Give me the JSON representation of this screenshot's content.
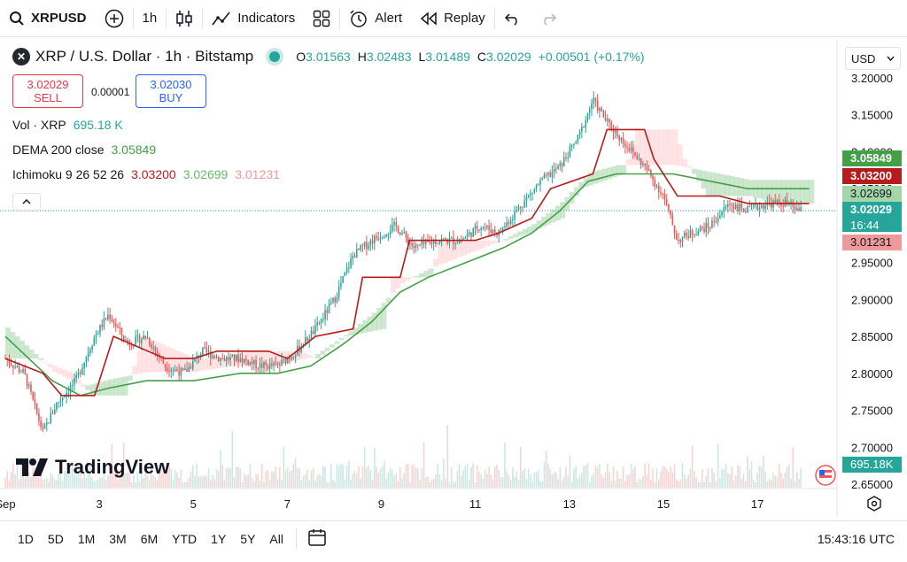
{
  "toolbar": {
    "symbol": "XRPUSD",
    "interval": "1h",
    "indicators_label": "Indicators",
    "alert_label": "Alert",
    "replay_label": "Replay"
  },
  "legend": {
    "title": "XRP / U.S. Dollar · 1h · Bitstamp",
    "open_key": "O",
    "open": "3.01563",
    "high_key": "H",
    "high": "3.02483",
    "low_key": "L",
    "low": "3.01489",
    "close_key": "C",
    "close": "3.02029",
    "change": "+0.00501 (+0.17%)"
  },
  "trade": {
    "sell_price": "3.02029",
    "sell_label": "SELL",
    "buy_price": "3.02030",
    "buy_label": "BUY",
    "spread": "0.00001"
  },
  "indicators": {
    "vol_label": "Vol · XRP",
    "vol_value": "695.18 K",
    "dema_label": "DEMA 200 close",
    "dema_value": "3.05849",
    "ichimoku_label": "Ichimoku 9 26 52 26",
    "ichimoku_v1": "3.03200",
    "ichimoku_v2": "3.02699",
    "ichimoku_v3": "3.01231"
  },
  "currency": "USD",
  "price_labels": {
    "dema": "3.05849",
    "base": "3.03200",
    "spanA": "3.02699",
    "last": "3.02029",
    "countdown": "16:44",
    "spanB": "3.01231",
    "volume": "695.18K"
  },
  "branding": "TradingView",
  "bottom": {
    "ranges": [
      "1D",
      "5D",
      "1M",
      "3M",
      "6M",
      "YTD",
      "1Y",
      "5Y",
      "All"
    ],
    "clock": "15:43:16 UTC"
  },
  "colors": {
    "up": "#26a69a",
    "down": "#ef5350",
    "dema": "#43a047",
    "base_line": "#b71c1c",
    "cloud_green": "#a5d6a7",
    "cloud_red": "#ffcdd2"
  },
  "chart_data": {
    "type": "candlestick",
    "title": "XRP / U.S. Dollar · 1h · Bitstamp",
    "ylim": [
      2.65,
      3.2
    ],
    "y_ticks": [
      "3.20000",
      "3.15000",
      "3.10000",
      "3.05000",
      "3.00000",
      "2.95000",
      "2.90000",
      "2.85000",
      "2.80000",
      "2.75000",
      "2.70000",
      "2.65000"
    ],
    "x_ticks": [
      "Sep",
      "3",
      "5",
      "7",
      "9",
      "11",
      "13",
      "15",
      "17"
    ],
    "x_tick_days": [
      1,
      3,
      5,
      7,
      9,
      11,
      13,
      15,
      17
    ],
    "x_range_days": [
      1,
      18.6
    ],
    "price_path": [
      [
        1.0,
        2.82
      ],
      [
        1.4,
        2.8
      ],
      [
        1.8,
        2.72
      ],
      [
        2.1,
        2.76
      ],
      [
        2.5,
        2.79
      ],
      [
        2.9,
        2.85
      ],
      [
        3.2,
        2.88
      ],
      [
        3.6,
        2.84
      ],
      [
        4.0,
        2.85
      ],
      [
        4.4,
        2.81
      ],
      [
        4.8,
        2.8
      ],
      [
        5.2,
        2.83
      ],
      [
        5.6,
        2.82
      ],
      [
        6.0,
        2.82
      ],
      [
        6.4,
        2.81
      ],
      [
        6.8,
        2.81
      ],
      [
        7.2,
        2.83
      ],
      [
        7.6,
        2.86
      ],
      [
        8.0,
        2.9
      ],
      [
        8.4,
        2.96
      ],
      [
        8.8,
        2.98
      ],
      [
        9.3,
        3.0
      ],
      [
        9.7,
        2.97
      ],
      [
        10.2,
        2.98
      ],
      [
        10.7,
        2.98
      ],
      [
        11.1,
        3.0
      ],
      [
        11.5,
        2.99
      ],
      [
        12.0,
        3.03
      ],
      [
        12.4,
        3.06
      ],
      [
        12.8,
        3.08
      ],
      [
        13.2,
        3.12
      ],
      [
        13.5,
        3.17
      ],
      [
        13.8,
        3.14
      ],
      [
        14.2,
        3.11
      ],
      [
        14.6,
        3.08
      ],
      [
        15.0,
        3.04
      ],
      [
        15.3,
        2.98
      ],
      [
        15.6,
        2.99
      ],
      [
        16.0,
        3.0
      ],
      [
        16.4,
        3.03
      ],
      [
        16.8,
        3.02
      ],
      [
        17.2,
        3.03
      ],
      [
        17.6,
        3.03
      ],
      [
        17.9,
        3.02
      ]
    ],
    "series": [
      {
        "name": "DEMA 200 close",
        "color": "#43a047",
        "points": [
          [
            1.0,
            2.85
          ],
          [
            1.5,
            2.82
          ],
          [
            2.0,
            2.79
          ],
          [
            2.6,
            2.77
          ],
          [
            3.2,
            2.78
          ],
          [
            4.0,
            2.79
          ],
          [
            5.0,
            2.79
          ],
          [
            6.0,
            2.8
          ],
          [
            6.8,
            2.8
          ],
          [
            7.5,
            2.81
          ],
          [
            8.2,
            2.84
          ],
          [
            8.8,
            2.87
          ],
          [
            9.4,
            2.91
          ],
          [
            10.0,
            2.93
          ],
          [
            10.8,
            2.95
          ],
          [
            11.6,
            2.97
          ],
          [
            12.2,
            2.99
          ],
          [
            12.8,
            3.02
          ],
          [
            13.4,
            3.06
          ],
          [
            14.0,
            3.07
          ],
          [
            14.6,
            3.07
          ],
          [
            15.2,
            3.07
          ],
          [
            16.0,
            3.06
          ],
          [
            16.8,
            3.05
          ],
          [
            17.6,
            3.05
          ],
          [
            18.1,
            3.05
          ]
        ]
      },
      {
        "name": "Ichimoku base",
        "color": "#b71c1c",
        "points": [
          [
            1.0,
            2.82
          ],
          [
            1.8,
            2.8
          ],
          [
            2.2,
            2.77
          ],
          [
            2.9,
            2.77
          ],
          [
            3.3,
            2.85
          ],
          [
            4.4,
            2.82
          ],
          [
            5.0,
            2.82
          ],
          [
            5.5,
            2.83
          ],
          [
            6.6,
            2.83
          ],
          [
            7.0,
            2.82
          ],
          [
            7.6,
            2.85
          ],
          [
            8.4,
            2.86
          ],
          [
            8.6,
            2.93
          ],
          [
            9.4,
            2.93
          ],
          [
            9.6,
            2.98
          ],
          [
            11.0,
            2.98
          ],
          [
            11.5,
            2.99
          ],
          [
            12.2,
            3.01
          ],
          [
            12.6,
            3.05
          ],
          [
            13.5,
            3.07
          ],
          [
            13.8,
            3.13
          ],
          [
            14.6,
            3.13
          ],
          [
            14.8,
            3.09
          ],
          [
            15.3,
            3.04
          ],
          [
            16.2,
            3.04
          ],
          [
            16.8,
            3.03
          ],
          [
            17.4,
            3.03
          ],
          [
            18.1,
            3.03
          ]
        ]
      }
    ],
    "volume_label": "695.18K",
    "last_price": 3.02029
  }
}
